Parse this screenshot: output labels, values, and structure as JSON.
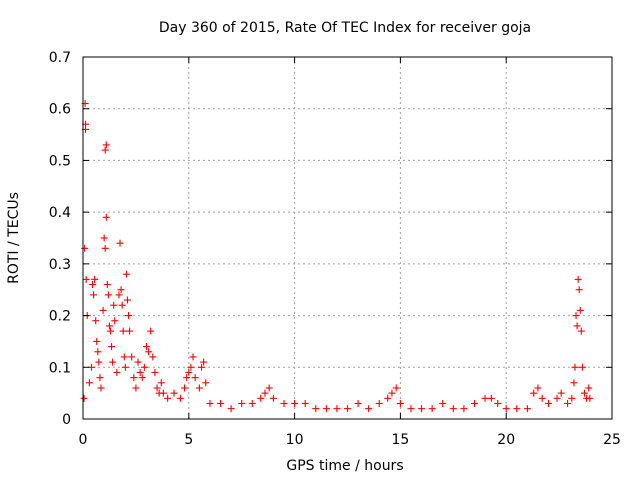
{
  "chart_data": {
    "type": "scatter",
    "title": "Day 360 of 2015, Rate Of TEC Index for receiver goja",
    "xlabel": "GPS time / hours",
    "ylabel": "ROTI / TECUs",
    "xlim": [
      0,
      25
    ],
    "ylim": [
      0,
      0.7
    ],
    "xticks": [
      "0",
      "5",
      "10",
      "15",
      "20",
      "25"
    ],
    "yticks": [
      "0",
      "0.1",
      "0.2",
      "0.3",
      "0.4",
      "0.5",
      "0.6",
      "0.7"
    ],
    "grid": true,
    "marker": "plus",
    "color": "#ff0000",
    "series": [
      {
        "points": [
          [
            0.05,
            0.04
          ],
          [
            0.08,
            0.33
          ],
          [
            0.1,
            0.61
          ],
          [
            0.12,
            0.57
          ],
          [
            0.12,
            0.56
          ],
          [
            0.15,
            0.27
          ],
          [
            0.2,
            0.2
          ],
          [
            0.3,
            0.07
          ],
          [
            0.4,
            0.1
          ],
          [
            0.45,
            0.26
          ],
          [
            0.5,
            0.24
          ],
          [
            0.55,
            0.27
          ],
          [
            0.6,
            0.19
          ],
          [
            0.65,
            0.15
          ],
          [
            0.7,
            0.13
          ],
          [
            0.75,
            0.11
          ],
          [
            0.8,
            0.08
          ],
          [
            0.85,
            0.06
          ],
          [
            0.95,
            0.21
          ],
          [
            1.0,
            0.35
          ],
          [
            1.05,
            0.33
          ],
          [
            1.05,
            0.52
          ],
          [
            1.1,
            0.53
          ],
          [
            1.1,
            0.39
          ],
          [
            1.15,
            0.26
          ],
          [
            1.2,
            0.24
          ],
          [
            1.25,
            0.18
          ],
          [
            1.3,
            0.17
          ],
          [
            1.35,
            0.14
          ],
          [
            1.4,
            0.11
          ],
          [
            1.45,
            0.22
          ],
          [
            1.5,
            0.19
          ],
          [
            1.6,
            0.09
          ],
          [
            1.7,
            0.24
          ],
          [
            1.75,
            0.34
          ],
          [
            1.8,
            0.25
          ],
          [
            1.85,
            0.22
          ],
          [
            1.9,
            0.17
          ],
          [
            1.95,
            0.12
          ],
          [
            2.0,
            0.1
          ],
          [
            2.05,
            0.28
          ],
          [
            2.1,
            0.23
          ],
          [
            2.15,
            0.2
          ],
          [
            2.2,
            0.17
          ],
          [
            2.3,
            0.12
          ],
          [
            2.4,
            0.08
          ],
          [
            2.5,
            0.06
          ],
          [
            2.6,
            0.11
          ],
          [
            2.7,
            0.09
          ],
          [
            2.8,
            0.08
          ],
          [
            2.9,
            0.1
          ],
          [
            3.0,
            0.14
          ],
          [
            3.1,
            0.13
          ],
          [
            3.2,
            0.17
          ],
          [
            3.3,
            0.12
          ],
          [
            3.4,
            0.09
          ],
          [
            3.5,
            0.06
          ],
          [
            3.6,
            0.05
          ],
          [
            3.7,
            0.07
          ],
          [
            3.8,
            0.05
          ],
          [
            4.0,
            0.04
          ],
          [
            4.3,
            0.05
          ],
          [
            4.6,
            0.04
          ],
          [
            4.8,
            0.06
          ],
          [
            4.9,
            0.08
          ],
          [
            5.0,
            0.09
          ],
          [
            5.1,
            0.1
          ],
          [
            5.2,
            0.12
          ],
          [
            5.3,
            0.08
          ],
          [
            5.5,
            0.06
          ],
          [
            5.6,
            0.1
          ],
          [
            5.7,
            0.11
          ],
          [
            5.8,
            0.07
          ],
          [
            6.0,
            0.03
          ],
          [
            6.5,
            0.03
          ],
          [
            7.0,
            0.02
          ],
          [
            7.5,
            0.03
          ],
          [
            8.0,
            0.03
          ],
          [
            8.4,
            0.04
          ],
          [
            8.6,
            0.05
          ],
          [
            8.8,
            0.06
          ],
          [
            9.0,
            0.04
          ],
          [
            9.5,
            0.03
          ],
          [
            10.0,
            0.03
          ],
          [
            10.5,
            0.03
          ],
          [
            11.0,
            0.02
          ],
          [
            11.5,
            0.02
          ],
          [
            12.0,
            0.02
          ],
          [
            12.5,
            0.02
          ],
          [
            13.0,
            0.03
          ],
          [
            13.5,
            0.02
          ],
          [
            14.0,
            0.03
          ],
          [
            14.4,
            0.04
          ],
          [
            14.6,
            0.05
          ],
          [
            14.8,
            0.06
          ],
          [
            15.0,
            0.03
          ],
          [
            15.5,
            0.02
          ],
          [
            16.0,
            0.02
          ],
          [
            16.5,
            0.02
          ],
          [
            17.0,
            0.03
          ],
          [
            17.5,
            0.02
          ],
          [
            18.0,
            0.02
          ],
          [
            18.5,
            0.03
          ],
          [
            19.0,
            0.04
          ],
          [
            19.3,
            0.04
          ],
          [
            19.6,
            0.03
          ],
          [
            20.0,
            0.02
          ],
          [
            20.5,
            0.02
          ],
          [
            21.0,
            0.02
          ],
          [
            21.3,
            0.05
          ],
          [
            21.5,
            0.06
          ],
          [
            21.7,
            0.04
          ],
          [
            22.0,
            0.03
          ],
          [
            22.4,
            0.04
          ],
          [
            22.6,
            0.05
          ],
          [
            22.9,
            0.03
          ],
          [
            23.1,
            0.04
          ],
          [
            23.2,
            0.07
          ],
          [
            23.25,
            0.1
          ],
          [
            23.3,
            0.2
          ],
          [
            23.35,
            0.18
          ],
          [
            23.4,
            0.27
          ],
          [
            23.45,
            0.25
          ],
          [
            23.5,
            0.21
          ],
          [
            23.55,
            0.17
          ],
          [
            23.6,
            0.1
          ],
          [
            23.7,
            0.05
          ],
          [
            23.8,
            0.04
          ],
          [
            23.9,
            0.06
          ],
          [
            23.95,
            0.04
          ]
        ]
      }
    ]
  }
}
